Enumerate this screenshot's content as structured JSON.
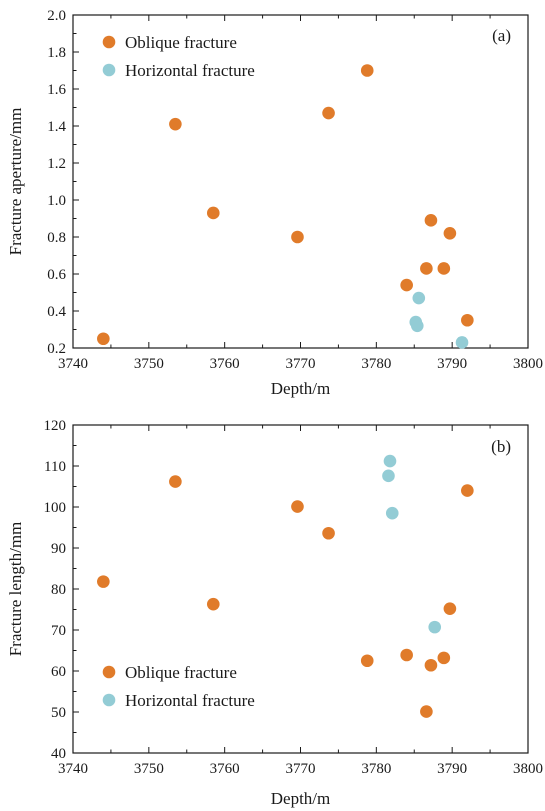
{
  "colors": {
    "oblique": "#E07B2A",
    "horizontal": "#93CCD5",
    "axis": "#1a1a1a"
  },
  "chart_data": [
    {
      "type": "scatter",
      "panel_label": "(a)",
      "xlabel": "Depth/m",
      "ylabel": "Fracture aperture/mm",
      "xlim": [
        3740,
        3800
      ],
      "ylim": [
        0.2,
        2.0
      ],
      "xticks": [
        "3740",
        "3750",
        "3760",
        "3770",
        "3780",
        "3790",
        "3800"
      ],
      "yticks": [
        "0.2",
        "0.4",
        "0.6",
        "0.8",
        "1.0",
        "1.2",
        "1.4",
        "1.6",
        "1.8",
        "2.0"
      ],
      "legend_position": "top-left",
      "grid": false,
      "series": [
        {
          "name": "Oblique fracture",
          "color": "#E07B2A",
          "points": [
            [
              3744,
              0.25
            ],
            [
              3753.5,
              1.41
            ],
            [
              3758.5,
              0.93
            ],
            [
              3769.6,
              0.8
            ],
            [
              3773.7,
              1.47
            ],
            [
              3778.8,
              1.7
            ],
            [
              3784,
              0.54
            ],
            [
              3786.6,
              0.63
            ],
            [
              3787.2,
              0.89
            ],
            [
              3788.9,
              0.63
            ],
            [
              3789.7,
              0.82
            ],
            [
              3792,
              0.35
            ]
          ]
        },
        {
          "name": "Horizontal fracture",
          "color": "#93CCD5",
          "points": [
            [
              3785.2,
              0.34
            ],
            [
              3785.4,
              0.32
            ],
            [
              3785.6,
              0.47
            ],
            [
              3791.3,
              0.23
            ]
          ]
        }
      ]
    },
    {
      "type": "scatter",
      "panel_label": "(b)",
      "xlabel": "Depth/m",
      "ylabel": "Fracture length/mm",
      "xlim": [
        3740,
        3800
      ],
      "ylim": [
        40,
        120
      ],
      "xticks": [
        "3740",
        "3750",
        "3760",
        "3770",
        "3780",
        "3790",
        "3800"
      ],
      "yticks": [
        "40",
        "50",
        "60",
        "70",
        "80",
        "90",
        "100",
        "110",
        "120"
      ],
      "legend_position": "bottom-left",
      "grid": false,
      "series": [
        {
          "name": "Oblique fracture",
          "color": "#E07B2A",
          "points": [
            [
              3744,
              81.8
            ],
            [
              3753.5,
              106.2
            ],
            [
              3758.5,
              76.3
            ],
            [
              3769.6,
              100.1
            ],
            [
              3773.7,
              93.6
            ],
            [
              3778.8,
              62.5
            ],
            [
              3784,
              63.9
            ],
            [
              3786.6,
              50.1
            ],
            [
              3787.2,
              61.4
            ],
            [
              3788.9,
              63.2
            ],
            [
              3789.7,
              75.2
            ],
            [
              3792,
              104.0
            ]
          ]
        },
        {
          "name": "Horizontal fracture",
          "color": "#93CCD5",
          "points": [
            [
              3781.6,
              107.6
            ],
            [
              3781.8,
              111.2
            ],
            [
              3782.1,
              98.5
            ],
            [
              3787.7,
              70.7
            ]
          ]
        }
      ]
    }
  ]
}
